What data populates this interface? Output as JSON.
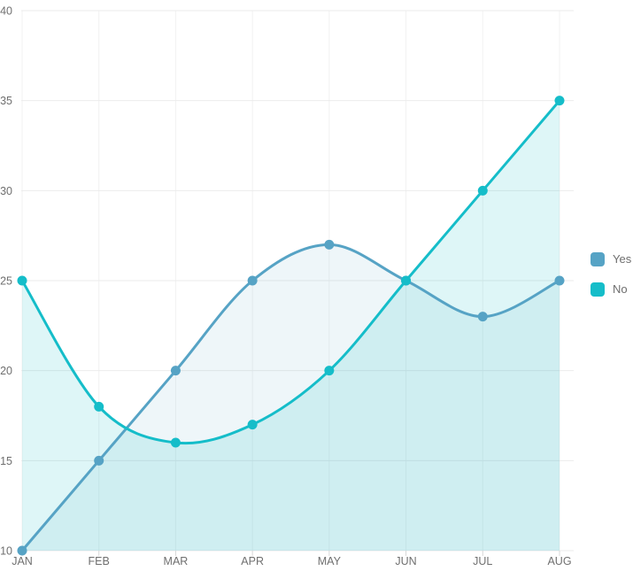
{
  "chart_data": {
    "type": "area",
    "curve": "smooth",
    "title": "",
    "xlabel": "",
    "ylabel": "",
    "categories": [
      "JAN",
      "FEB",
      "MAR",
      "APR",
      "MAY",
      "JUN",
      "JUL",
      "AUG"
    ],
    "series": [
      {
        "name": "Yes",
        "values": [
          10,
          15,
          20,
          25,
          27,
          25,
          23,
          25
        ],
        "color": "#56a3c5",
        "fill_opacity": 0.1
      },
      {
        "name": "No",
        "values": [
          25,
          18,
          16,
          17,
          20,
          25,
          30,
          35
        ],
        "color": "#15bdc9",
        "fill_opacity": 0.14
      }
    ],
    "ylim": [
      10,
      40
    ],
    "y_ticks": [
      10,
      15,
      20,
      25,
      30,
      35,
      40
    ],
    "grid": true,
    "legend_position": "right",
    "line_width": 3,
    "marker_radius": 5.5
  },
  "legend": {
    "items": [
      {
        "label": "Yes",
        "color": "#56a3c5"
      },
      {
        "label": "No",
        "color": "#15bdc9"
      }
    ]
  },
  "styles": {
    "background": "#ffffff",
    "grid_color_h": "#ebebeb",
    "grid_color_v": "#f2f2f2",
    "tick_color": "#d8d8d8",
    "axis_label_color": "#6f6f6f",
    "legend_text_color": "#6e6e6e"
  }
}
